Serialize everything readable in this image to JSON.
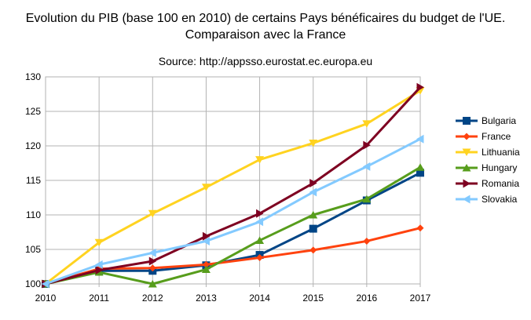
{
  "chart_data": {
    "type": "line",
    "title": "Evolution du PIB (base 100 en 2010) de certains Pays bénéficaires du budget de l'UE.",
    "subtitle": "Comparaison avec la France",
    "source": "Source: http://appsso.eurostat.ec.europa.eu",
    "xlabel": "",
    "ylabel": "",
    "x": [
      "2010",
      "2011",
      "2012",
      "2013",
      "2014",
      "2015",
      "2016",
      "2017"
    ],
    "ylim": [
      100,
      130
    ],
    "yticks": [
      100,
      105,
      110,
      115,
      120,
      125,
      130
    ],
    "grid": true,
    "legend_position": "right",
    "series": [
      {
        "name": "Bulgaria",
        "color": "#004586",
        "marker": "square",
        "values": [
          100,
          101.9,
          101.9,
          102.7,
          104.2,
          108.0,
          112.1,
          116.1
        ]
      },
      {
        "name": "France",
        "color": "#ff420e",
        "marker": "diamond",
        "values": [
          100,
          102.2,
          102.3,
          102.8,
          103.8,
          104.9,
          106.2,
          108.1
        ]
      },
      {
        "name": "Lithuania",
        "color": "#ffd320",
        "marker": "triangle-down",
        "values": [
          100,
          106.0,
          110.2,
          114.0,
          118.0,
          120.4,
          123.2,
          128.0
        ]
      },
      {
        "name": "Hungary",
        "color": "#579d1c",
        "marker": "triangle-up",
        "values": [
          100,
          101.7,
          100.0,
          102.1,
          106.3,
          110.0,
          112.3,
          116.9
        ]
      },
      {
        "name": "Romania",
        "color": "#7e0021",
        "marker": "triangle-right",
        "values": [
          100,
          102.0,
          103.3,
          106.9,
          110.2,
          114.6,
          120.1,
          128.5
        ]
      },
      {
        "name": "Slovakia",
        "color": "#83caff",
        "marker": "triangle-left",
        "values": [
          100,
          102.8,
          104.5,
          106.2,
          109.0,
          113.3,
          117.0,
          121.0
        ]
      }
    ]
  }
}
